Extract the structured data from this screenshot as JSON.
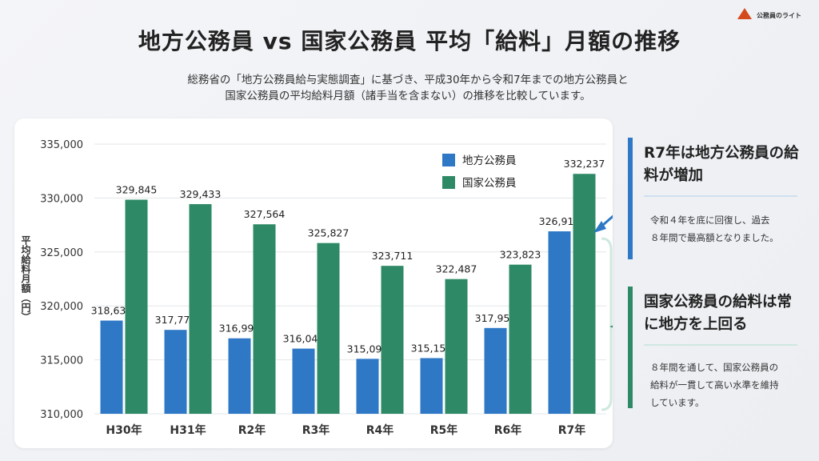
{
  "title": "地方公務員 vs 国家公務員 平均「給料」月額の推移",
  "subtitle_lines": [
    "総務省の「地方公務員給与実態調査」に基づき、平成30年から令和7年までの地方公務員と",
    "国家公務員の平均給料月額（諸手当を含まない）の推移を比較しています。"
  ],
  "logo": {
    "text": "公務員のライト"
  },
  "colors": {
    "local": "#2e78c6",
    "national": "#2e8a66",
    "accent_blue": "#2e78c6",
    "accent_green": "#2e8a66"
  },
  "chart_data": {
    "type": "bar",
    "ylabel": "平均給料月額（円）",
    "ylim": [
      310000,
      335000
    ],
    "yticks": [
      "310,000",
      "315,000",
      "320,000",
      "325,000",
      "330,000",
      "335,000"
    ],
    "categories": [
      "H30年",
      "H31年",
      "R2年",
      "R3年",
      "R4年",
      "R5年",
      "R6年",
      "R7年"
    ],
    "series": [
      {
        "name": "地方公務員",
        "values": [
          318639,
          317775,
          316993,
          316040,
          315093,
          315159,
          317951,
          326911
        ],
        "labels": [
          "318,639",
          "317,775",
          "316,993",
          "316,040",
          "315,093",
          "315,159",
          "317,951",
          "326,911"
        ]
      },
      {
        "name": "国家公務員",
        "values": [
          329845,
          329433,
          327564,
          325827,
          323711,
          322487,
          323823,
          332237
        ],
        "labels": [
          "329,845",
          "329,433",
          "327,564",
          "325,827",
          "323,711",
          "322,487",
          "323,823",
          "332,237"
        ]
      }
    ],
    "grid": true,
    "legend": "top-right"
  },
  "cards": [
    {
      "title": "R7年は地方公務員の給料が増加",
      "body_lines": [
        "令和４年を底に回復し、過去",
        "８年間で最高額となりました。"
      ]
    },
    {
      "title": "国家公務員の給料は常に地方を上回る",
      "body_lines": [
        "８年間を通して、国家公務員の",
        "給料が一貫して高い水準を維持",
        "しています。"
      ]
    }
  ]
}
